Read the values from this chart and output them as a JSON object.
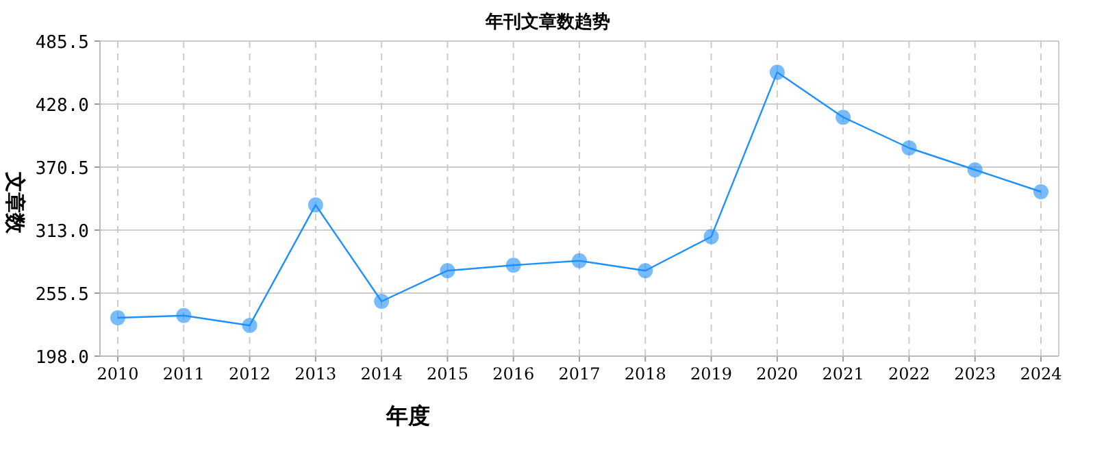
{
  "chart_data": {
    "type": "line",
    "title": "年刊文章数趋势",
    "xlabel": "年度",
    "ylabel": "文章数",
    "categories": [
      "2010",
      "2011",
      "2012",
      "2013",
      "2014",
      "2015",
      "2016",
      "2017",
      "2018",
      "2019",
      "2020",
      "2021",
      "2022",
      "2023",
      "2024"
    ],
    "series": [
      {
        "color": "#1e90ff",
        "values": [
          233,
          235,
          226,
          336,
          248,
          276,
          281,
          285,
          276,
          307,
          457,
          416,
          388,
          368,
          348
        ]
      }
    ],
    "ylim": [
      198.0,
      485.5
    ],
    "yticks": [
      {
        "value": 198.0,
        "label": "198.0"
      },
      {
        "value": 255.5,
        "label": "255.5"
      },
      {
        "value": 313.0,
        "label": "313.0"
      },
      {
        "value": 370.5,
        "label": "370.5"
      },
      {
        "value": 428.0,
        "label": "428.0"
      },
      {
        "value": 485.5,
        "label": "485.5"
      }
    ],
    "grid": true,
    "marker": "circle",
    "line_style": "solid"
  }
}
